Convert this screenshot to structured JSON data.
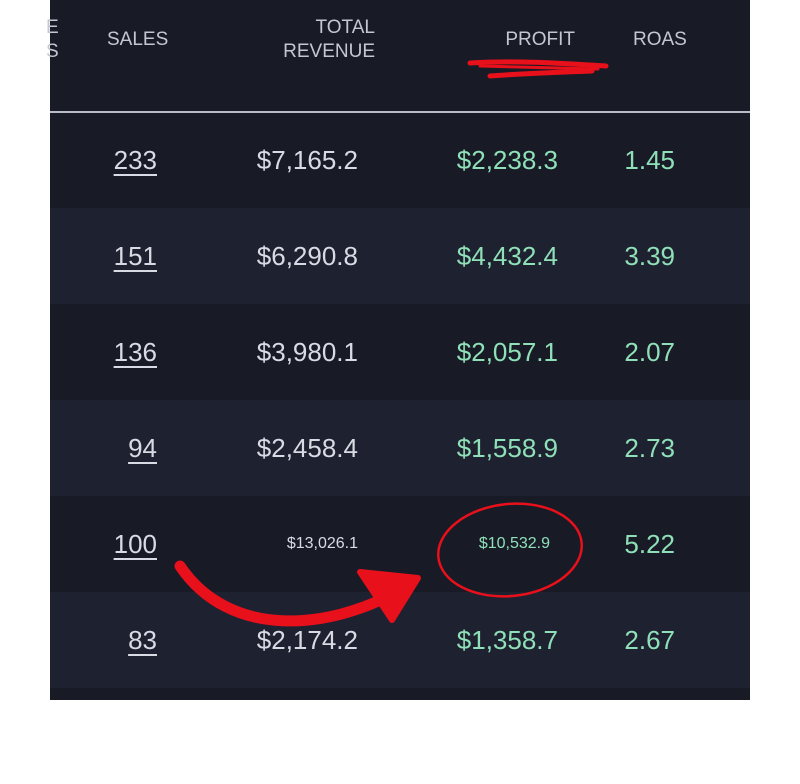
{
  "header": {
    "partial_column": [
      "E",
      "S"
    ],
    "sales": "SALES",
    "total_revenue": [
      "TOTAL",
      "REVENUE"
    ],
    "profit": "PROFIT",
    "roas": "ROAS"
  },
  "rows": [
    {
      "sales": "233",
      "total_revenue": "$7,165.2",
      "profit": "$2,238.3",
      "roas": "1.45"
    },
    {
      "sales": "151",
      "total_revenue": "$6,290.8",
      "profit": "$4,432.4",
      "roas": "3.39"
    },
    {
      "sales": "136",
      "total_revenue": "$3,980.1",
      "profit": "$2,057.1",
      "roas": "2.07"
    },
    {
      "sales": "94",
      "total_revenue": "$2,458.4",
      "profit": "$1,558.9",
      "roas": "2.73"
    },
    {
      "sales": "100",
      "total_revenue": "$13,026.1",
      "profit": "$10,532.9",
      "roas": "5.22"
    },
    {
      "sales": "83",
      "total_revenue": "$2,174.2",
      "profit": "$1,358.7",
      "roas": "2.67"
    }
  ],
  "colors": {
    "background": "#181a26",
    "row_alt": "#1e2130",
    "text": "#d9dbe4",
    "positive": "#8fe0b8",
    "annotation": "#e8101a"
  }
}
